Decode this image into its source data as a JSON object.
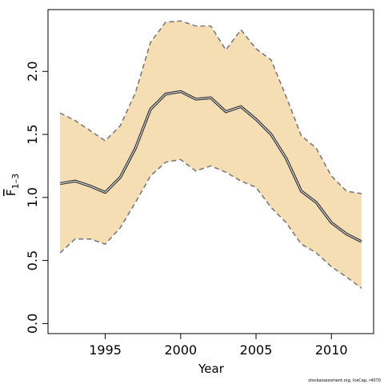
{
  "chart_data": {
    "type": "line",
    "title": "",
    "xlabel": "Year",
    "ylabel_main": "F",
    "ylabel_sub": "1–3",
    "x": [
      1992,
      1993,
      1994,
      1995,
      1996,
      1997,
      1998,
      1999,
      2000,
      2001,
      2002,
      2003,
      2004,
      2005,
      2006,
      2007,
      2008,
      2009,
      2010,
      2011,
      2012
    ],
    "series": [
      {
        "role": "estimate",
        "values": [
          1.11,
          1.13,
          1.09,
          1.04,
          1.16,
          1.39,
          1.7,
          1.82,
          1.84,
          1.78,
          1.79,
          1.68,
          1.72,
          1.62,
          1.5,
          1.31,
          1.05,
          0.96,
          0.8,
          0.71,
          0.65
        ]
      },
      {
        "role": "upper",
        "values": [
          1.67,
          1.61,
          1.53,
          1.45,
          1.57,
          1.83,
          2.23,
          2.39,
          2.4,
          2.36,
          2.36,
          2.17,
          2.33,
          2.18,
          2.09,
          1.8,
          1.49,
          1.39,
          1.17,
          1.05,
          1.03
        ]
      },
      {
        "role": "lower",
        "values": [
          0.56,
          0.67,
          0.67,
          0.63,
          0.76,
          0.96,
          1.17,
          1.28,
          1.3,
          1.21,
          1.25,
          1.2,
          1.13,
          1.08,
          0.92,
          0.8,
          0.63,
          0.56,
          0.45,
          0.37,
          0.28
        ]
      }
    ],
    "xlim": [
      1991.2,
      2012.8
    ],
    "ylim": [
      -0.08,
      2.49
    ],
    "x_ticks": [
      "1995",
      "2000",
      "2005",
      "2010"
    ],
    "y_ticks": [
      "0.0",
      "0.5",
      "1.0",
      "1.5",
      "2.0"
    ],
    "grid": false,
    "colors": {
      "band": "#f5deb3",
      "band_edge": "#7a7a7a",
      "line_outer": "#333333",
      "line_inner": "#ffffff"
    }
  },
  "footer": {
    "credit": "stockassessment.org, IceCap, r4070"
  }
}
